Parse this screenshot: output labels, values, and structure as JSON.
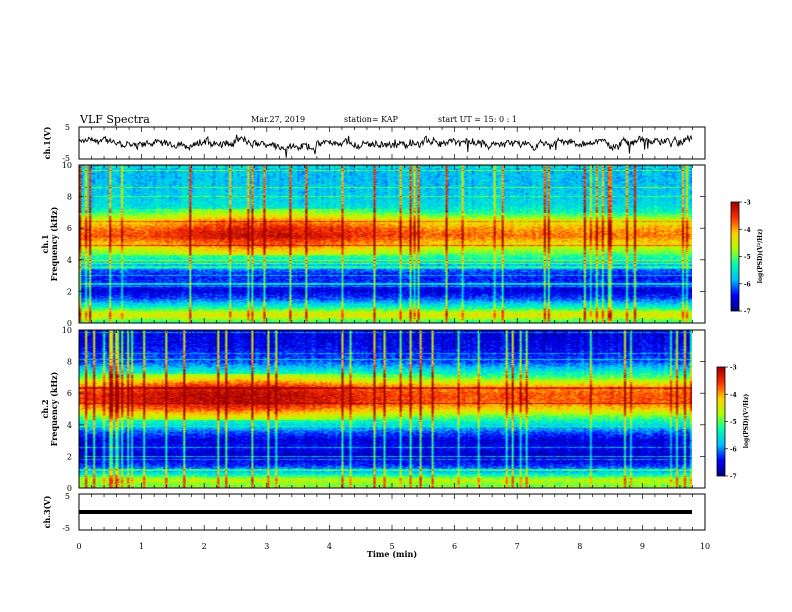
{
  "header": {
    "title": "VLF Spectra",
    "date": "Mar.27, 2019",
    "station": "station= KAP",
    "start": "start  UT =   15: 0  : 1"
  },
  "colors": {
    "colormap": [
      "#00007f",
      "#0000ff",
      "#00bfff",
      "#00ffb0",
      "#b0ff00",
      "#ffd000",
      "#ff3000",
      "#9f0000"
    ],
    "line": "#000000"
  },
  "chart_data": [
    {
      "type": "line",
      "name": "ch1-waveform",
      "ylabel": "ch.1(V)",
      "ylim": [
        -5,
        5
      ],
      "yticks": [
        "5",
        "-5"
      ],
      "xlim": [
        0,
        10
      ],
      "noise_amplitude": 0.9
    },
    {
      "type": "heatmap",
      "name": "ch1-spectrogram",
      "ylabel": "ch.1\nFrequency  (kHz)",
      "ylabel_lines": [
        "ch.1",
        "Frequency  (kHz)"
      ],
      "ylim": [
        0,
        10
      ],
      "yticks": [
        "0",
        "2",
        "4",
        "6",
        "8",
        "10"
      ],
      "xlim": [
        0,
        9.8
      ],
      "zlim": [
        -7,
        -3
      ],
      "colorbar_label": "log(PSD)(V²/Hz)",
      "colorbar_ticks": [
        "-3",
        "-4",
        "-5",
        "-6",
        "-7"
      ],
      "profile": [
        {
          "f": 0.0,
          "z": -5.2
        },
        {
          "f": 0.5,
          "z": -4.3
        },
        {
          "f": 1.0,
          "z": -5.4
        },
        {
          "f": 1.5,
          "z": -6.2
        },
        {
          "f": 2.0,
          "z": -6.6
        },
        {
          "f": 2.5,
          "z": -6.3
        },
        {
          "f": 3.0,
          "z": -6.4
        },
        {
          "f": 3.5,
          "z": -6.0
        },
        {
          "f": 4.0,
          "z": -5.4
        },
        {
          "f": 4.5,
          "z": -4.9
        },
        {
          "f": 5.0,
          "z": -4.3
        },
        {
          "f": 5.5,
          "z": -3.8
        },
        {
          "f": 6.0,
          "z": -4.0
        },
        {
          "f": 6.5,
          "z": -4.5
        },
        {
          "f": 7.0,
          "z": -5.3
        },
        {
          "f": 7.5,
          "z": -5.6
        },
        {
          "f": 8.0,
          "z": -5.7
        },
        {
          "f": 9.0,
          "z": -5.8
        },
        {
          "f": 10.0,
          "z": -5.8
        }
      ],
      "peak_time": 3.0
    },
    {
      "type": "heatmap",
      "name": "ch2-spectrogram",
      "ylabel": "ch.2\nFrequency  (kHz)",
      "ylabel_lines": [
        "ch.2",
        "Frequency  (kHz)"
      ],
      "ylim": [
        0,
        10
      ],
      "yticks": [
        "0",
        "2",
        "4",
        "6",
        "8",
        "10"
      ],
      "xlim": [
        0,
        9.8
      ],
      "zlim": [
        -7,
        -3
      ],
      "colorbar_label": "log(PSD)(V²/Hz)",
      "colorbar_ticks": [
        "-3",
        "-4",
        "-5",
        "-6",
        "-7"
      ],
      "profile": [
        {
          "f": 0.0,
          "z": -5.0
        },
        {
          "f": 0.5,
          "z": -4.6
        },
        {
          "f": 1.0,
          "z": -5.8
        },
        {
          "f": 1.5,
          "z": -6.4
        },
        {
          "f": 2.0,
          "z": -6.7
        },
        {
          "f": 2.5,
          "z": -6.5
        },
        {
          "f": 3.0,
          "z": -6.6
        },
        {
          "f": 3.5,
          "z": -6.2
        },
        {
          "f": 4.0,
          "z": -5.6
        },
        {
          "f": 4.5,
          "z": -5.0
        },
        {
          "f": 5.0,
          "z": -4.2
        },
        {
          "f": 5.5,
          "z": -3.7
        },
        {
          "f": 6.0,
          "z": -3.7
        },
        {
          "f": 6.5,
          "z": -4.1
        },
        {
          "f": 7.0,
          "z": -5.0
        },
        {
          "f": 7.5,
          "z": -5.6
        },
        {
          "f": 8.0,
          "z": -6.2
        },
        {
          "f": 9.0,
          "z": -6.5
        },
        {
          "f": 10.0,
          "z": -6.6
        }
      ],
      "peak_time": 2.5
    },
    {
      "type": "line",
      "name": "ch3-waveform",
      "ylabel": "ch.3(V)",
      "ylim": [
        -5,
        5
      ],
      "yticks": [
        "5",
        "-5"
      ],
      "xlim": [
        0,
        10
      ],
      "value": 0
    }
  ],
  "x_axis": {
    "label": "Time  (min)",
    "ticks": [
      "0",
      "1",
      "2",
      "3",
      "4",
      "5",
      "6",
      "7",
      "8",
      "9",
      "10"
    ]
  }
}
